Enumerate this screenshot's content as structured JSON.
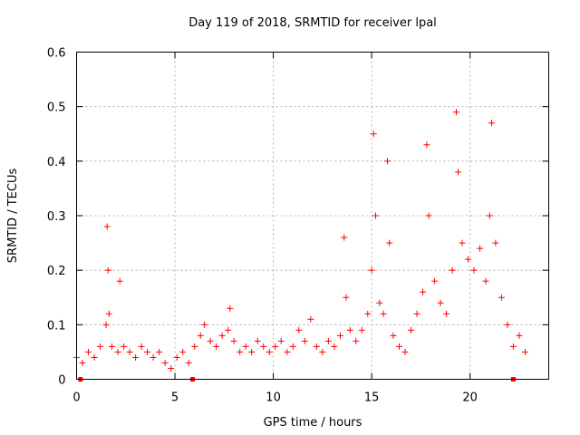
{
  "chart_data": {
    "type": "scatter",
    "title": "Day 119 of 2018, SRMTID for receiver lpal",
    "xlabel": "GPS time / hours",
    "ylabel": "SRMTID / TECUs",
    "xlim": [
      0,
      24
    ],
    "ylim": [
      0,
      0.6
    ],
    "grid": true,
    "marker": "+",
    "color": "#ff0000",
    "x_ticks": [
      0,
      5,
      10,
      15,
      20
    ],
    "x_tick_labels": [
      "0",
      "5",
      "10",
      "15",
      "20"
    ],
    "y_ticks": [
      0,
      0.1,
      0.2,
      0.3,
      0.4,
      0.5,
      0.6
    ],
    "y_tick_labels": [
      "0",
      "0.1",
      "0.2",
      "0.3",
      "0.4",
      "0.5",
      "0.6"
    ],
    "data_gap_markers_x": [
      0.2,
      5.9,
      22.2
    ],
    "series": [
      {
        "name": "SRMTID",
        "x": [
          0.0,
          0.3,
          0.6,
          0.9,
          1.2,
          1.5,
          1.55,
          1.6,
          1.65,
          1.8,
          2.1,
          2.2,
          2.4,
          2.7,
          3.0,
          3.3,
          3.6,
          3.9,
          4.2,
          4.5,
          4.8,
          5.1,
          5.4,
          5.7,
          6.0,
          6.3,
          6.5,
          6.8,
          7.1,
          7.4,
          7.7,
          7.8,
          8.0,
          8.3,
          8.6,
          8.9,
          9.2,
          9.5,
          9.8,
          10.1,
          10.4,
          10.7,
          11.0,
          11.3,
          11.6,
          11.9,
          12.2,
          12.5,
          12.8,
          13.1,
          13.4,
          13.6,
          13.7,
          13.9,
          14.2,
          14.5,
          14.8,
          15.0,
          15.1,
          15.2,
          15.4,
          15.6,
          15.8,
          15.9,
          16.1,
          16.4,
          16.7,
          17.0,
          17.3,
          17.6,
          17.8,
          17.9,
          18.2,
          18.5,
          18.8,
          19.1,
          19.3,
          19.4,
          19.6,
          19.9,
          20.2,
          20.5,
          20.8,
          21.0,
          21.1,
          21.3,
          21.6,
          21.9,
          22.2,
          22.5,
          22.8
        ],
        "y": [
          0.04,
          0.03,
          0.05,
          0.04,
          0.06,
          0.1,
          0.28,
          0.2,
          0.12,
          0.06,
          0.05,
          0.18,
          0.06,
          0.05,
          0.04,
          0.06,
          0.05,
          0.04,
          0.05,
          0.03,
          0.02,
          0.04,
          0.05,
          0.03,
          0.06,
          0.08,
          0.1,
          0.07,
          0.06,
          0.08,
          0.09,
          0.13,
          0.07,
          0.05,
          0.06,
          0.05,
          0.07,
          0.06,
          0.05,
          0.06,
          0.07,
          0.05,
          0.06,
          0.09,
          0.07,
          0.11,
          0.06,
          0.05,
          0.07,
          0.06,
          0.08,
          0.26,
          0.15,
          0.09,
          0.07,
          0.09,
          0.12,
          0.2,
          0.45,
          0.3,
          0.14,
          0.12,
          0.4,
          0.25,
          0.08,
          0.06,
          0.05,
          0.09,
          0.12,
          0.16,
          0.43,
          0.3,
          0.18,
          0.14,
          0.12,
          0.2,
          0.49,
          0.38,
          0.25,
          0.22,
          0.2,
          0.24,
          0.18,
          0.3,
          0.47,
          0.25,
          0.15,
          0.1,
          0.06,
          0.08,
          0.05
        ]
      }
    ]
  }
}
